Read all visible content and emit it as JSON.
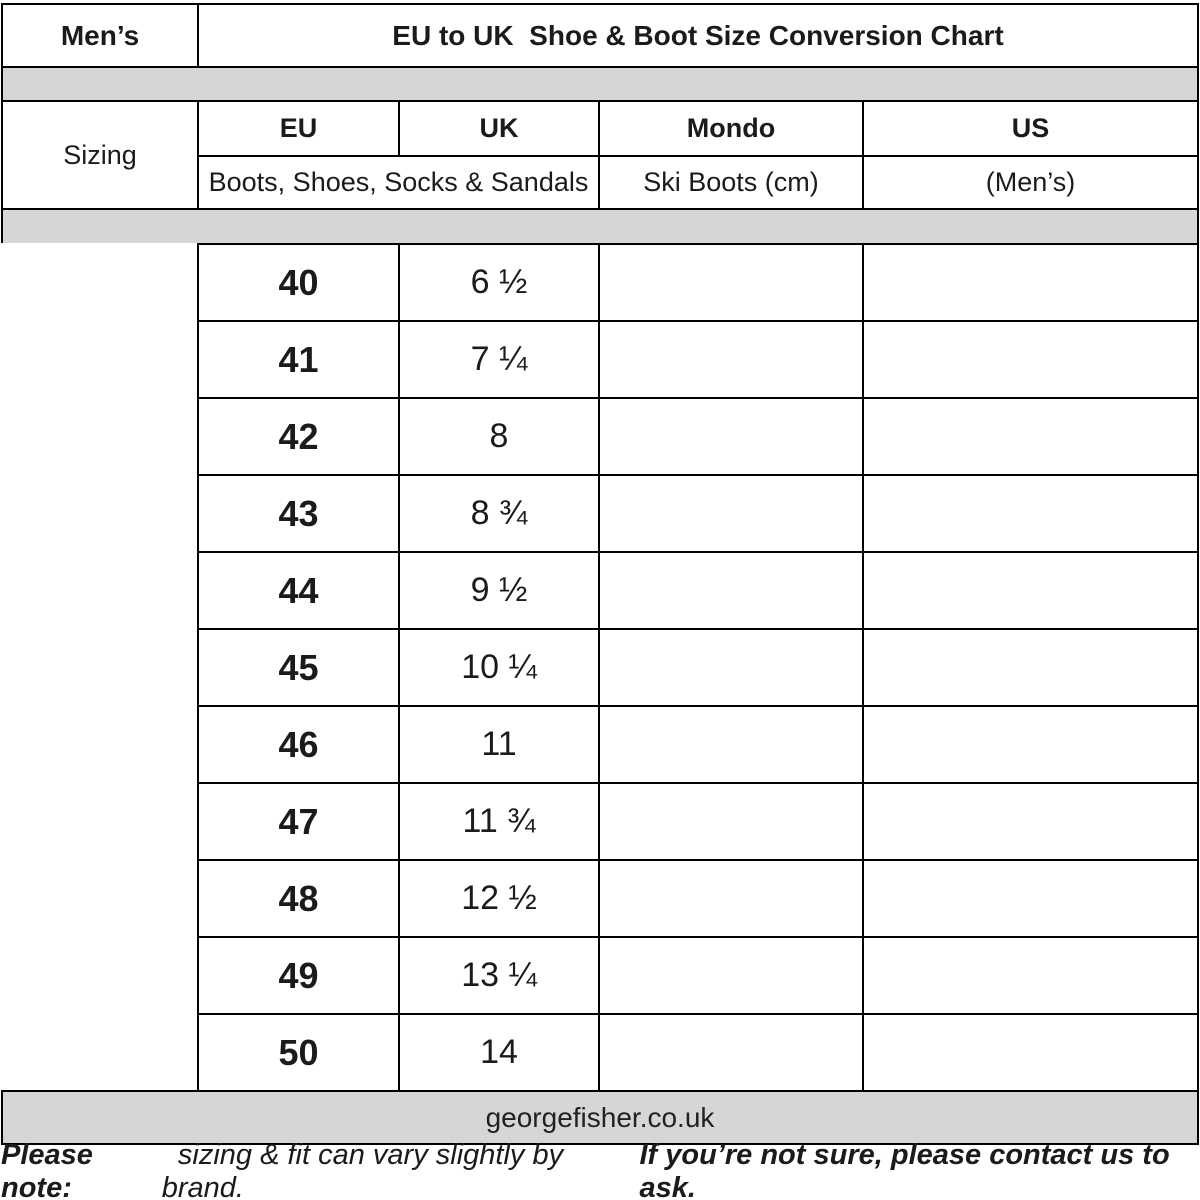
{
  "title_row": {
    "category": "Men’s",
    "title": "EU to UK  Shoe & Boot Size Conversion Chart"
  },
  "header": {
    "sizing_label": "Sizing",
    "columns": {
      "eu": "EU",
      "uk": "UK",
      "mondo": "Mondo",
      "us": "US"
    },
    "subheaders": {
      "eu_uk": "Boots, Shoes, Socks & Sandals",
      "mondo": "Ski Boots (cm)",
      "us": "(Men’s)"
    }
  },
  "rows": [
    {
      "eu": "40",
      "uk": "6 ½",
      "mondo": "",
      "us": ""
    },
    {
      "eu": "41",
      "uk": "7 ¼",
      "mondo": "",
      "us": ""
    },
    {
      "eu": "42",
      "uk": "8",
      "mondo": "",
      "us": ""
    },
    {
      "eu": "43",
      "uk": "8 ¾",
      "mondo": "",
      "us": ""
    },
    {
      "eu": "44",
      "uk": "9 ½",
      "mondo": "",
      "us": ""
    },
    {
      "eu": "45",
      "uk": "10 ¼",
      "mondo": "",
      "us": ""
    },
    {
      "eu": "46",
      "uk": "11",
      "mondo": "",
      "us": ""
    },
    {
      "eu": "47",
      "uk": "11 ¾",
      "mondo": "",
      "us": ""
    },
    {
      "eu": "48",
      "uk": "12 ½",
      "mondo": "",
      "us": ""
    },
    {
      "eu": "49",
      "uk": "13 ¼",
      "mondo": "",
      "us": ""
    },
    {
      "eu": "50",
      "uk": "14",
      "mondo": "",
      "us": ""
    }
  ],
  "footer": {
    "website": "georgefisher.co.uk"
  },
  "note": {
    "prefix": "Please note:",
    "body": "  sizing & fit can vary slightly by brand.  ",
    "emphasis": "If you’re not sure, please contact us to ask."
  },
  "colors": {
    "border": "#000000",
    "band_gray": "#d6d6d6",
    "text": "#1b1b1b",
    "background": "#ffffff"
  }
}
